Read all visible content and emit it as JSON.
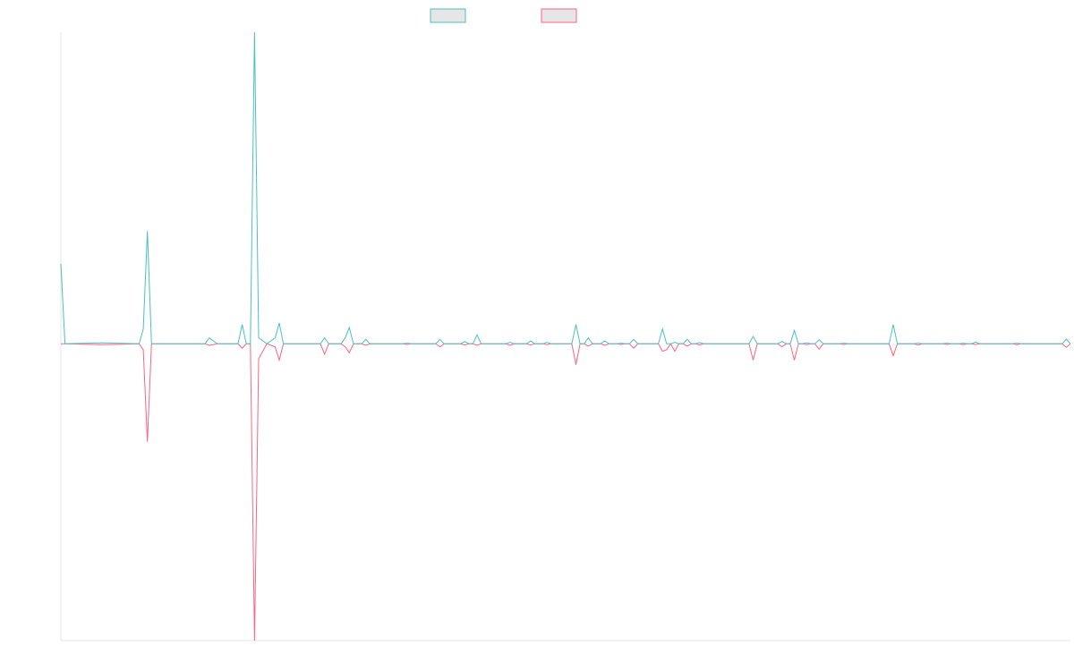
{
  "chart_data": {
    "type": "line",
    "title": "",
    "xlabel": "",
    "ylabel": "",
    "ylim": [
      -1.0,
      1.05
    ],
    "grid": false,
    "legend": "top-center",
    "x_count": 246,
    "series": [
      {
        "name": "",
        "color": "#4bc0c0",
        "fill": "#e6e6e6",
        "points": [
          [
            0,
            0.27
          ],
          [
            1,
            0
          ],
          [
            10,
            0.003
          ],
          [
            19,
            0
          ],
          [
            20,
            0.05
          ],
          [
            21,
            0.38
          ],
          [
            22,
            0
          ],
          [
            35,
            0
          ],
          [
            36,
            0.02
          ],
          [
            38,
            0
          ],
          [
            43,
            0
          ],
          [
            44,
            0.065
          ],
          [
            45,
            0
          ],
          [
            46,
            0
          ],
          [
            47,
            1.05
          ],
          [
            48,
            0.02
          ],
          [
            50,
            0
          ],
          [
            52,
            0.02
          ],
          [
            53,
            0.07
          ],
          [
            54,
            0
          ],
          [
            63,
            0
          ],
          [
            64,
            0.02
          ],
          [
            65,
            0
          ],
          [
            68,
            0
          ],
          [
            69,
            0.02
          ],
          [
            70,
            0.055
          ],
          [
            71,
            0
          ],
          [
            73,
            0
          ],
          [
            74,
            0.015
          ],
          [
            75,
            0
          ],
          [
            83,
            0
          ],
          [
            84,
            0.002
          ],
          [
            85,
            0
          ],
          [
            91,
            0
          ],
          [
            92,
            0.015
          ],
          [
            93,
            0
          ],
          [
            97,
            0
          ],
          [
            98,
            0.008
          ],
          [
            99,
            0
          ],
          [
            100,
            0
          ],
          [
            101,
            0.03
          ],
          [
            102,
            0
          ],
          [
            108,
            0
          ],
          [
            109,
            0.005
          ],
          [
            110,
            0
          ],
          [
            113,
            0
          ],
          [
            114,
            0.01
          ],
          [
            115,
            0
          ],
          [
            117,
            0
          ],
          [
            118,
            0.005
          ],
          [
            119,
            0
          ],
          [
            124,
            0
          ],
          [
            125,
            0.065
          ],
          [
            126,
            0
          ],
          [
            127,
            0
          ],
          [
            128,
            0.02
          ],
          [
            129,
            0
          ],
          [
            131,
            0
          ],
          [
            132,
            0.01
          ],
          [
            133,
            0
          ],
          [
            135,
            0
          ],
          [
            136,
            0.002
          ],
          [
            137,
            0
          ],
          [
            138,
            0
          ],
          [
            139,
            0.015
          ],
          [
            140,
            0
          ],
          [
            145,
            0
          ],
          [
            146,
            0.05
          ],
          [
            147,
            0
          ],
          [
            148,
            0
          ],
          [
            149,
            0.005
          ],
          [
            150,
            0
          ],
          [
            151,
            0
          ],
          [
            152,
            0.015
          ],
          [
            153,
            0
          ],
          [
            154,
            0
          ],
          [
            155,
            0.004
          ],
          [
            156,
            0
          ],
          [
            167,
            0
          ],
          [
            168,
            0.025
          ],
          [
            169,
            0
          ],
          [
            174,
            0
          ],
          [
            175,
            0.008
          ],
          [
            176,
            0
          ],
          [
            177,
            0
          ],
          [
            178,
            0.045
          ],
          [
            179,
            0
          ],
          [
            180,
            0
          ],
          [
            181,
            0.003
          ],
          [
            182,
            0
          ],
          [
            183,
            0
          ],
          [
            184,
            0.014
          ],
          [
            185,
            0
          ],
          [
            186,
            0
          ],
          [
            189,
            0
          ],
          [
            190,
            0.002
          ],
          [
            191,
            0
          ],
          [
            201,
            0
          ],
          [
            202,
            0.065
          ],
          [
            203,
            0
          ],
          [
            207,
            0
          ],
          [
            208,
            0.002
          ],
          [
            209,
            0
          ],
          [
            214,
            0
          ],
          [
            215,
            0.002
          ],
          [
            216,
            0
          ],
          [
            218,
            0
          ],
          [
            219,
            0.002
          ],
          [
            220,
            0
          ],
          [
            221,
            0
          ],
          [
            222,
            0.006
          ],
          [
            223,
            0
          ],
          [
            231,
            0
          ],
          [
            232,
            0.002
          ],
          [
            233,
            0
          ],
          [
            243,
            0
          ],
          [
            244,
            0.016
          ],
          [
            245,
            0
          ]
        ]
      },
      {
        "name": "",
        "color": "#ff6384",
        "fill": "#e6e6e6",
        "points": [
          [
            0,
            0
          ],
          [
            1,
            0
          ],
          [
            10,
            -0.003
          ],
          [
            19,
            0
          ],
          [
            20,
            -0.02
          ],
          [
            21,
            -0.33
          ],
          [
            22,
            0
          ],
          [
            35,
            0
          ],
          [
            36,
            -0.005
          ],
          [
            38,
            0
          ],
          [
            43,
            0
          ],
          [
            44,
            -0.015
          ],
          [
            45,
            0
          ],
          [
            46,
            0
          ],
          [
            47,
            -1.0
          ],
          [
            48,
            -0.05
          ],
          [
            50,
            0
          ],
          [
            52,
            -0.01
          ],
          [
            53,
            -0.055
          ],
          [
            54,
            0
          ],
          [
            63,
            0
          ],
          [
            64,
            -0.035
          ],
          [
            65,
            0
          ],
          [
            68,
            0
          ],
          [
            69,
            -0.01
          ],
          [
            70,
            -0.03
          ],
          [
            71,
            0
          ],
          [
            73,
            0
          ],
          [
            74,
            -0.005
          ],
          [
            75,
            0
          ],
          [
            83,
            0
          ],
          [
            84,
            -0.002
          ],
          [
            85,
            0
          ],
          [
            91,
            0
          ],
          [
            92,
            -0.01
          ],
          [
            93,
            0
          ],
          [
            97,
            0
          ],
          [
            98,
            -0.004
          ],
          [
            99,
            0
          ],
          [
            100,
            0
          ],
          [
            101,
            -0.005
          ],
          [
            102,
            0
          ],
          [
            108,
            0
          ],
          [
            109,
            -0.005
          ],
          [
            110,
            0
          ],
          [
            113,
            0
          ],
          [
            114,
            -0.004
          ],
          [
            115,
            0
          ],
          [
            117,
            0
          ],
          [
            118,
            -0.003
          ],
          [
            119,
            0
          ],
          [
            124,
            0
          ],
          [
            125,
            -0.07
          ],
          [
            126,
            0
          ],
          [
            127,
            0
          ],
          [
            128,
            -0.008
          ],
          [
            129,
            0
          ],
          [
            131,
            0
          ],
          [
            132,
            -0.005
          ],
          [
            133,
            0
          ],
          [
            135,
            0
          ],
          [
            136,
            -0.002
          ],
          [
            137,
            0
          ],
          [
            138,
            0
          ],
          [
            139,
            -0.015
          ],
          [
            140,
            0
          ],
          [
            145,
            0
          ],
          [
            146,
            -0.025
          ],
          [
            147,
            -0.02
          ],
          [
            148,
            0
          ],
          [
            149,
            -0.025
          ],
          [
            150,
            0
          ],
          [
            151,
            0
          ],
          [
            152,
            -0.008
          ],
          [
            153,
            0
          ],
          [
            154,
            0
          ],
          [
            155,
            -0.004
          ],
          [
            156,
            0
          ],
          [
            167,
            0
          ],
          [
            168,
            -0.055
          ],
          [
            169,
            0
          ],
          [
            174,
            0
          ],
          [
            175,
            -0.01
          ],
          [
            176,
            0
          ],
          [
            177,
            0
          ],
          [
            178,
            -0.055
          ],
          [
            179,
            0
          ],
          [
            180,
            0
          ],
          [
            181,
            -0.003
          ],
          [
            182,
            0
          ],
          [
            183,
            0
          ],
          [
            184,
            -0.018
          ],
          [
            185,
            0
          ],
          [
            186,
            0
          ],
          [
            189,
            0
          ],
          [
            190,
            -0.002
          ],
          [
            191,
            0
          ],
          [
            201,
            0
          ],
          [
            202,
            -0.04
          ],
          [
            203,
            0
          ],
          [
            207,
            0
          ],
          [
            208,
            -0.004
          ],
          [
            209,
            0
          ],
          [
            214,
            0
          ],
          [
            215,
            -0.002
          ],
          [
            216,
            0
          ],
          [
            218,
            0
          ],
          [
            219,
            -0.003
          ],
          [
            220,
            0
          ],
          [
            221,
            0
          ],
          [
            222,
            -0.002
          ],
          [
            223,
            0
          ],
          [
            231,
            0
          ],
          [
            232,
            -0.003
          ],
          [
            233,
            0
          ],
          [
            243,
            0
          ],
          [
            244,
            -0.012
          ],
          [
            245,
            0
          ]
        ]
      }
    ]
  }
}
